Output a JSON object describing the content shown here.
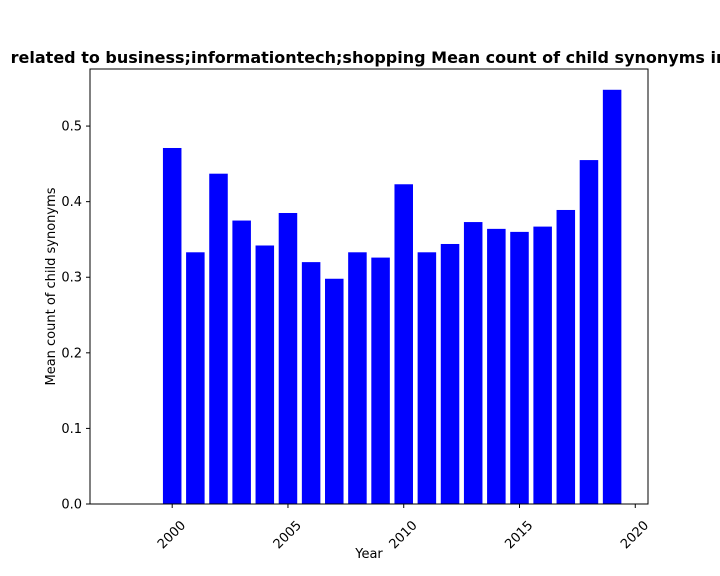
{
  "chart_data": {
    "type": "bar",
    "title": "related to business;informationtech;shopping Mean count of child synonyms in",
    "xlabel": "Year",
    "ylabel": "Mean count of child synonyms",
    "x": [
      2000,
      2001,
      2002,
      2003,
      2004,
      2005,
      2006,
      2007,
      2008,
      2009,
      2010,
      2011,
      2012,
      2013,
      2014,
      2015,
      2016,
      2017,
      2018,
      2019
    ],
    "values": [
      0.471,
      0.333,
      0.437,
      0.375,
      0.342,
      0.385,
      0.32,
      0.298,
      0.333,
      0.326,
      0.423,
      0.333,
      0.344,
      0.373,
      0.364,
      0.36,
      0.367,
      0.389,
      0.455,
      0.548
    ],
    "xlim": [
      1996.45,
      2020.55
    ],
    "ylim": [
      0,
      0.5755
    ],
    "xticks": [
      2000,
      2005,
      2010,
      2015,
      2020
    ],
    "xtick_labels": [
      "2000",
      "2005",
      "2010",
      "2015",
      "2020"
    ],
    "yticks": [
      0.0,
      0.1,
      0.2,
      0.3,
      0.4,
      0.5
    ],
    "ytick_labels": [
      "0.0",
      "0.1",
      "0.2",
      "0.3",
      "0.4",
      "0.5"
    ],
    "bar_color": "#0000ff",
    "grid": false
  }
}
